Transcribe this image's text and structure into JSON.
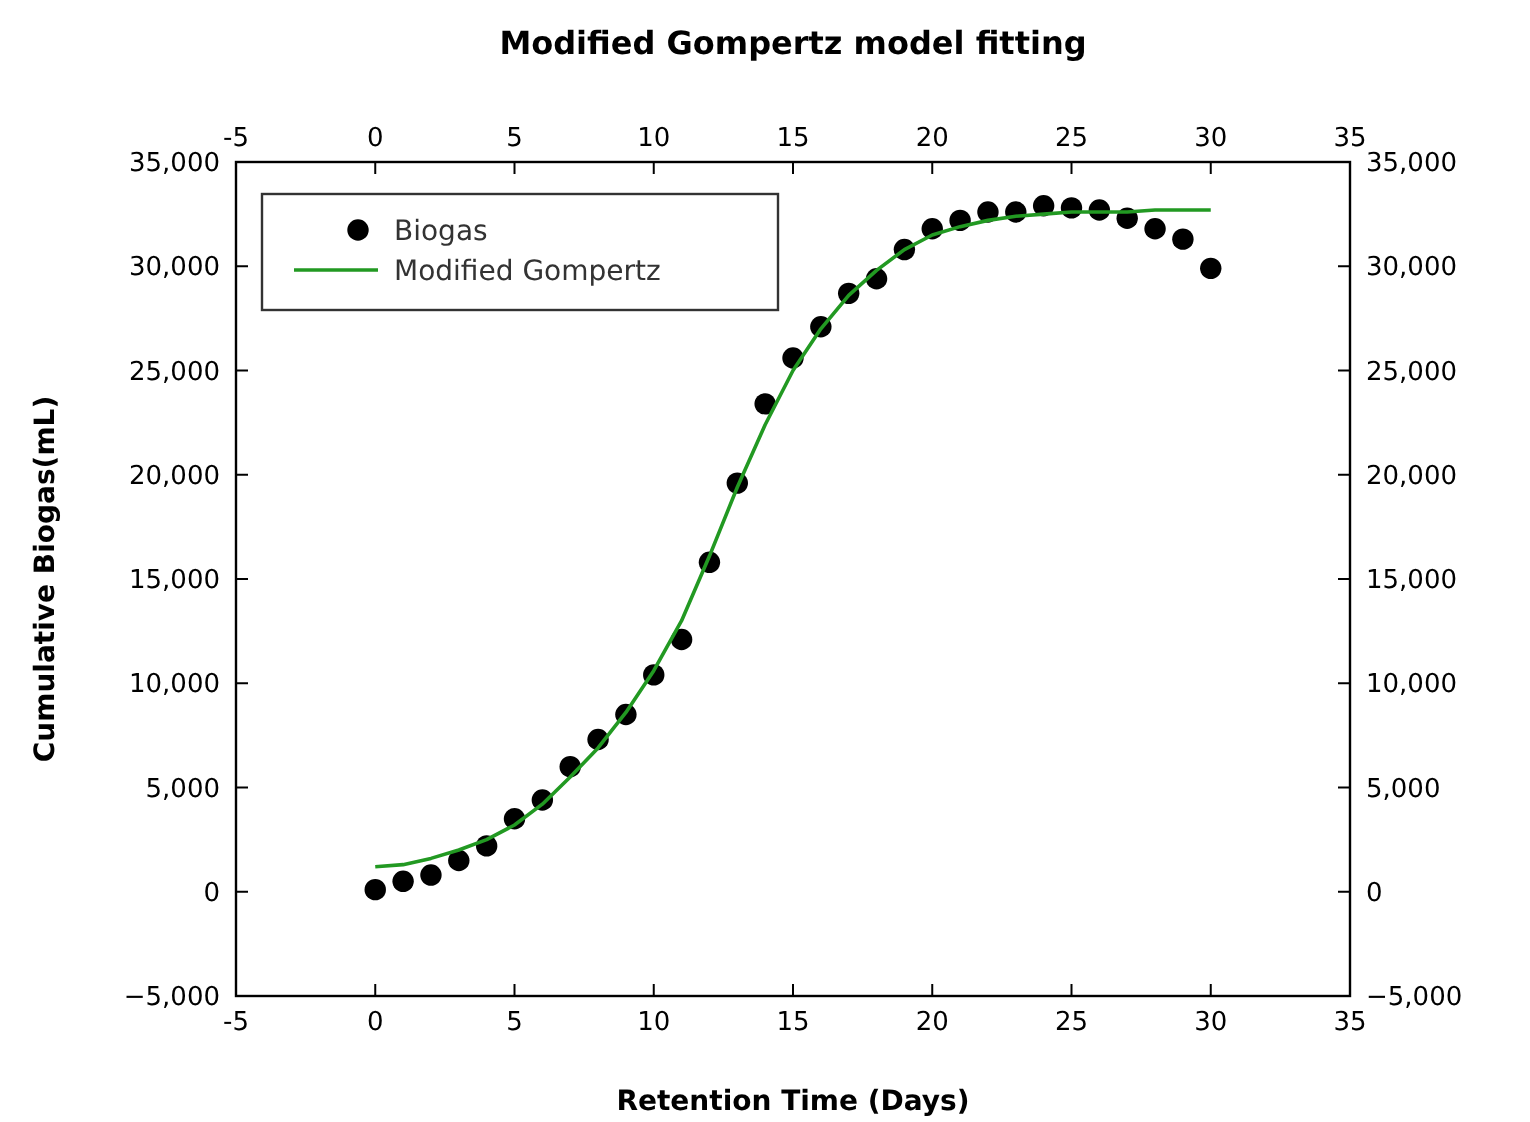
{
  "chart_data": {
    "type": "scatter",
    "title": "Modified Gompertz model fitting",
    "xlabel": "Retention Time (Days)",
    "ylabel": "Cumulative Biogas(mL)",
    "xlim": [
      -5,
      35
    ],
    "xticks": [
      -5,
      0,
      5,
      10,
      15,
      20,
      25,
      30,
      35
    ],
    "x2lim": [
      -5,
      35
    ],
    "x2ticks": [
      -5,
      0,
      5,
      10,
      15,
      20,
      25,
      30,
      35
    ],
    "ylim": [
      -5000,
      35000
    ],
    "yticks": [
      {
        "value": -5000,
        "label": "−5,000"
      },
      {
        "value": 0,
        "label": "0"
      },
      {
        "value": 5000,
        "label": "5,000"
      },
      {
        "value": 10000,
        "label": "10,000"
      },
      {
        "value": 15000,
        "label": "15,000"
      },
      {
        "value": 20000,
        "label": "20,000"
      },
      {
        "value": 25000,
        "label": "25,000"
      },
      {
        "value": 30000,
        "label": "30,000"
      },
      {
        "value": 35000,
        "label": "35,000"
      }
    ],
    "y2lim": [
      -5000,
      35000
    ],
    "y2ticks": [
      {
        "value": -5000,
        "label": "−5,000"
      },
      {
        "value": 0,
        "label": "0"
      },
      {
        "value": 5000,
        "label": "5,000"
      },
      {
        "value": 10000,
        "label": "10,000"
      },
      {
        "value": 15000,
        "label": "15,000"
      },
      {
        "value": 20000,
        "label": "20,000"
      },
      {
        "value": 25000,
        "label": "25,000"
      },
      {
        "value": 30000,
        "label": "30,000"
      },
      {
        "value": 35000,
        "label": "35,000"
      }
    ],
    "legend": "top left",
    "grid": false,
    "series": [
      {
        "name": "Biogas",
        "type": "scatter",
        "marker": "circle",
        "color": "#000000",
        "x": [
          0,
          1,
          2,
          3,
          4,
          5,
          6,
          7,
          8,
          9,
          10,
          11,
          12,
          13,
          14,
          15,
          16,
          17,
          18,
          19,
          20,
          21,
          22,
          23,
          24,
          25,
          26,
          27,
          28,
          29,
          30
        ],
        "values": [
          100,
          500,
          800,
          1500,
          2200,
          3500,
          4400,
          6000,
          7300,
          8500,
          10400,
          12100,
          15800,
          19600,
          23400,
          25600,
          27100,
          28700,
          29400,
          30800,
          31800,
          32200,
          32600,
          32600,
          32900,
          32800,
          32700,
          32300,
          31800,
          31300,
          29900
        ]
      },
      {
        "name": "Modified Gompertz",
        "type": "line",
        "marker": "none",
        "line_style": "solid",
        "color": "#229922",
        "x": [
          0,
          1,
          2,
          3,
          4,
          5,
          6,
          7,
          8,
          9,
          10,
          11,
          12,
          13,
          14,
          15,
          16,
          17,
          18,
          19,
          20,
          21,
          22,
          23,
          24,
          25,
          26,
          27,
          28,
          29,
          30
        ],
        "values": [
          1200,
          1300,
          1600,
          2000,
          2500,
          3200,
          4200,
          5500,
          6900,
          8600,
          10600,
          13000,
          16100,
          19400,
          22400,
          25000,
          27000,
          28600,
          29800,
          30800,
          31500,
          31900,
          32200,
          32400,
          32500,
          32600,
          32600,
          32600,
          32700,
          32700,
          32700
        ]
      }
    ]
  }
}
